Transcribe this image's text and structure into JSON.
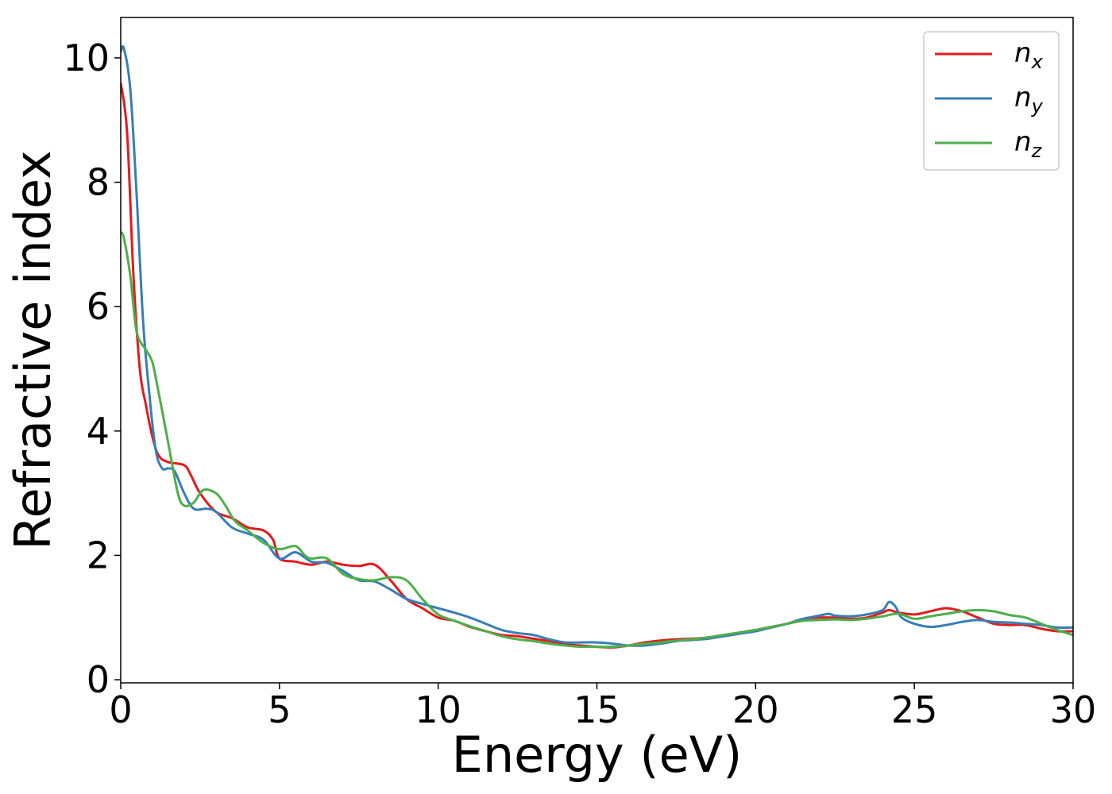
{
  "chart_data": {
    "type": "line",
    "xlabel": "Energy (eV)",
    "ylabel": "Refractive index",
    "xlim": [
      0,
      30
    ],
    "ylim": [
      -0.05,
      10.65
    ],
    "xticks": [
      "0",
      "5",
      "10",
      "15",
      "20",
      "25",
      "30"
    ],
    "yticks": [
      "0",
      "2",
      "4",
      "6",
      "8",
      "10"
    ],
    "grid": false,
    "legend_position": "top-right",
    "series": [
      {
        "name": "n_x",
        "legend_base": "n",
        "legend_sub": "x",
        "color": "#e41a1c",
        "x": [
          0,
          0.2,
          0.4,
          0.6,
          0.8,
          1.0,
          1.2,
          1.5,
          2.0,
          2.2,
          2.5,
          3.0,
          3.5,
          4.0,
          4.5,
          4.8,
          5.0,
          5.5,
          6.0,
          6.5,
          7.0,
          7.5,
          8.0,
          8.5,
          9.0,
          9.5,
          10.0,
          10.5,
          11.0,
          11.5,
          12.0,
          12.5,
          13.0,
          13.5,
          14.0,
          14.5,
          15.0,
          15.5,
          16.0,
          16.5,
          17.0,
          17.5,
          18.0,
          18.5,
          19.0,
          19.5,
          20.0,
          20.5,
          21.0,
          21.5,
          22.0,
          22.5,
          23.0,
          23.5,
          24.0,
          24.2,
          24.5,
          25.0,
          25.5,
          26.0,
          26.5,
          27.0,
          27.5,
          28.0,
          28.5,
          29.0,
          29.5,
          30.0
        ],
        "y": [
          9.6,
          8.8,
          6.5,
          5.0,
          4.4,
          3.9,
          3.6,
          3.5,
          3.45,
          3.3,
          3.0,
          2.7,
          2.6,
          2.45,
          2.4,
          2.25,
          1.95,
          1.9,
          1.85,
          1.9,
          1.85,
          1.83,
          1.85,
          1.6,
          1.3,
          1.15,
          1.0,
          0.95,
          0.85,
          0.78,
          0.72,
          0.7,
          0.66,
          0.62,
          0.57,
          0.55,
          0.53,
          0.52,
          0.55,
          0.6,
          0.63,
          0.65,
          0.66,
          0.68,
          0.72,
          0.76,
          0.8,
          0.85,
          0.9,
          0.98,
          1.0,
          1.0,
          0.98,
          1.0,
          1.08,
          1.12,
          1.08,
          1.05,
          1.1,
          1.15,
          1.1,
          1.0,
          0.9,
          0.88,
          0.88,
          0.82,
          0.78,
          0.78
        ]
      },
      {
        "name": "n_y",
        "legend_base": "n",
        "legend_sub": "y",
        "color": "#377eb8",
        "x": [
          0,
          0.1,
          0.3,
          0.5,
          0.7,
          0.9,
          1.1,
          1.3,
          1.5,
          1.7,
          2.0,
          2.3,
          2.7,
          3.0,
          3.5,
          4.0,
          4.5,
          5.0,
          5.5,
          6.0,
          6.5,
          7.0,
          7.5,
          8.0,
          8.5,
          9.0,
          9.5,
          10.0,
          10.5,
          11.0,
          11.5,
          12.0,
          12.5,
          13.0,
          13.5,
          14.0,
          14.5,
          15.0,
          15.5,
          16.0,
          16.5,
          17.0,
          17.5,
          18.0,
          18.5,
          19.0,
          19.5,
          20.0,
          20.5,
          21.0,
          21.5,
          22.0,
          22.3,
          22.5,
          23.0,
          23.5,
          24.0,
          24.2,
          24.4,
          24.6,
          25.0,
          25.5,
          26.0,
          26.5,
          27.0,
          27.5,
          28.0,
          28.5,
          29.0,
          29.5,
          30.0
        ],
        "y": [
          10.1,
          10.15,
          9.5,
          7.8,
          5.8,
          4.6,
          3.7,
          3.4,
          3.4,
          3.35,
          3.0,
          2.75,
          2.75,
          2.7,
          2.45,
          2.35,
          2.25,
          1.95,
          2.05,
          1.9,
          1.88,
          1.75,
          1.6,
          1.58,
          1.45,
          1.3,
          1.22,
          1.15,
          1.08,
          1.0,
          0.9,
          0.8,
          0.75,
          0.72,
          0.65,
          0.6,
          0.6,
          0.6,
          0.58,
          0.55,
          0.55,
          0.58,
          0.62,
          0.64,
          0.66,
          0.7,
          0.74,
          0.78,
          0.84,
          0.9,
          0.98,
          1.03,
          1.06,
          1.03,
          1.02,
          1.05,
          1.12,
          1.25,
          1.18,
          1.0,
          0.9,
          0.85,
          0.88,
          0.93,
          0.96,
          0.93,
          0.92,
          0.9,
          0.88,
          0.84,
          0.84
        ]
      },
      {
        "name": "n_z",
        "legend_base": "n",
        "legend_sub": "z",
        "color": "#4daf4a",
        "x": [
          0,
          0.1,
          0.3,
          0.5,
          0.8,
          1.0,
          1.2,
          1.5,
          1.8,
          2.0,
          2.3,
          2.6,
          3.0,
          3.3,
          3.6,
          4.0,
          4.5,
          5.0,
          5.5,
          5.8,
          6.0,
          6.5,
          7.0,
          7.5,
          8.0,
          8.5,
          9.0,
          9.5,
          10.0,
          10.5,
          11.0,
          11.5,
          12.0,
          12.5,
          13.0,
          13.5,
          14.0,
          14.5,
          15.0,
          15.5,
          16.0,
          16.5,
          17.0,
          17.5,
          18.0,
          18.5,
          19.0,
          19.5,
          20.0,
          20.5,
          21.0,
          21.5,
          22.0,
          22.5,
          23.0,
          23.5,
          24.0,
          24.5,
          25.0,
          25.5,
          26.0,
          26.5,
          27.0,
          27.5,
          28.0,
          28.5,
          29.0,
          29.5,
          30.0
        ],
        "y": [
          7.2,
          7.1,
          6.5,
          5.6,
          5.3,
          5.1,
          4.6,
          3.8,
          3.0,
          2.8,
          2.85,
          3.05,
          3.0,
          2.8,
          2.55,
          2.4,
          2.2,
          2.1,
          2.15,
          2.0,
          1.95,
          1.95,
          1.7,
          1.62,
          1.6,
          1.65,
          1.6,
          1.3,
          1.05,
          0.95,
          0.86,
          0.78,
          0.7,
          0.65,
          0.62,
          0.58,
          0.55,
          0.53,
          0.53,
          0.53,
          0.55,
          0.58,
          0.6,
          0.63,
          0.65,
          0.68,
          0.72,
          0.76,
          0.8,
          0.85,
          0.9,
          0.95,
          0.96,
          0.97,
          0.96,
          0.98,
          1.02,
          1.06,
          0.98,
          1.02,
          1.06,
          1.1,
          1.12,
          1.1,
          1.04,
          1.0,
          0.9,
          0.8,
          0.72
        ]
      }
    ]
  }
}
